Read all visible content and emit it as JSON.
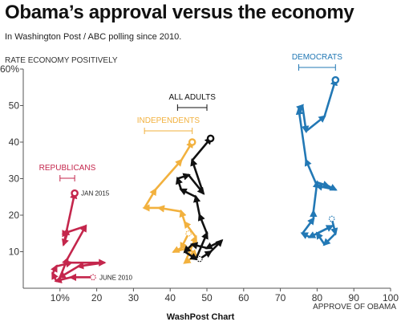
{
  "title": "Obama’s approval versus the economy",
  "subtitle": "In Washington Post / ABC polling since 2010.",
  "credit": "WashPost Chart",
  "chart_data": {
    "type": "line",
    "title": "Obama’s approval versus the economy",
    "subtitle": "In Washington Post / ABC polling since 2010.",
    "xlabel": "APPROVE OF OBAMA",
    "ylabel": "RATE ECONOMY POSITIVELY",
    "xlim": [
      0,
      100
    ],
    "ylim": [
      0,
      60
    ],
    "x_ticks": [
      10,
      20,
      30,
      40,
      50,
      60,
      70,
      80,
      90,
      100
    ],
    "x_tick_labels": [
      "10%",
      "20",
      "30",
      "40",
      "50",
      "60",
      "70",
      "80",
      "90",
      "100"
    ],
    "y_ticks": [
      10,
      20,
      30,
      40,
      50,
      60
    ],
    "y_tick_labels": [
      "10",
      "20",
      "30",
      "40",
      "50",
      "60%"
    ],
    "grid": false,
    "series": [
      {
        "name": "REPUBLICANS",
        "color": "#c4264c",
        "points": [
          [
            19,
            3
          ],
          [
            13,
            3
          ],
          [
            9,
            2
          ],
          [
            8,
            4
          ],
          [
            9,
            6
          ],
          [
            13,
            7
          ],
          [
            22,
            7
          ],
          [
            15,
            6
          ],
          [
            10,
            3
          ],
          [
            12,
            8
          ],
          [
            17,
            17
          ],
          [
            11,
            15
          ],
          [
            12,
            15
          ],
          [
            11,
            12
          ],
          [
            14,
            26
          ]
        ]
      },
      {
        "name": "INDEPENDENTS",
        "color": "#f2b13e",
        "points": [
          [
            45,
            15
          ],
          [
            43,
            11
          ],
          [
            41,
            10
          ],
          [
            45,
            11
          ],
          [
            47,
            9
          ],
          [
            44,
            7
          ],
          [
            47,
            14
          ],
          [
            44,
            18
          ],
          [
            43,
            21
          ],
          [
            37,
            22
          ],
          [
            33,
            22
          ],
          [
            36,
            27
          ],
          [
            43,
            35
          ],
          [
            46,
            40
          ]
        ]
      },
      {
        "name": "ALL ADULTS",
        "color": "#111111",
        "points": [
          [
            48,
            8
          ],
          [
            51,
            10
          ],
          [
            54,
            13
          ],
          [
            50,
            11
          ],
          [
            46,
            12
          ],
          [
            44,
            10
          ],
          [
            47,
            8
          ],
          [
            50,
            15
          ],
          [
            48,
            20
          ],
          [
            47,
            25
          ],
          [
            43,
            27
          ],
          [
            42,
            30
          ],
          [
            45,
            31
          ],
          [
            49,
            26
          ],
          [
            46,
            35
          ],
          [
            51,
            41
          ]
        ]
      },
      {
        "name": "DEMOCRATS",
        "color": "#2278b5",
        "points": [
          [
            84,
            19
          ],
          [
            85,
            15
          ],
          [
            82,
            12
          ],
          [
            80,
            15
          ],
          [
            84,
            17
          ],
          [
            78,
            14
          ],
          [
            76,
            15
          ],
          [
            79,
            19
          ],
          [
            79,
            21
          ],
          [
            80,
            29
          ],
          [
            83,
            28
          ],
          [
            85,
            27
          ],
          [
            80,
            28
          ],
          [
            77,
            35
          ],
          [
            75,
            49
          ],
          [
            76,
            50
          ],
          [
            77,
            43
          ],
          [
            82,
            47
          ],
          [
            85,
            57
          ]
        ]
      }
    ],
    "legend": [
      {
        "label": "REPUBLICANS",
        "range": [
          10,
          14
        ]
      },
      {
        "label": "INDEPENDENTS",
        "range": [
          33,
          46
        ]
      },
      {
        "label": "ALL ADULTS",
        "range": [
          42,
          50
        ]
      },
      {
        "label": "DEMOCRATS",
        "range": [
          75,
          85
        ]
      }
    ],
    "annotations": [
      {
        "text": "JAN 2015",
        "x": 14,
        "y": 26
      },
      {
        "text": "JUNE 2010",
        "x": 19,
        "y": 3
      }
    ]
  }
}
